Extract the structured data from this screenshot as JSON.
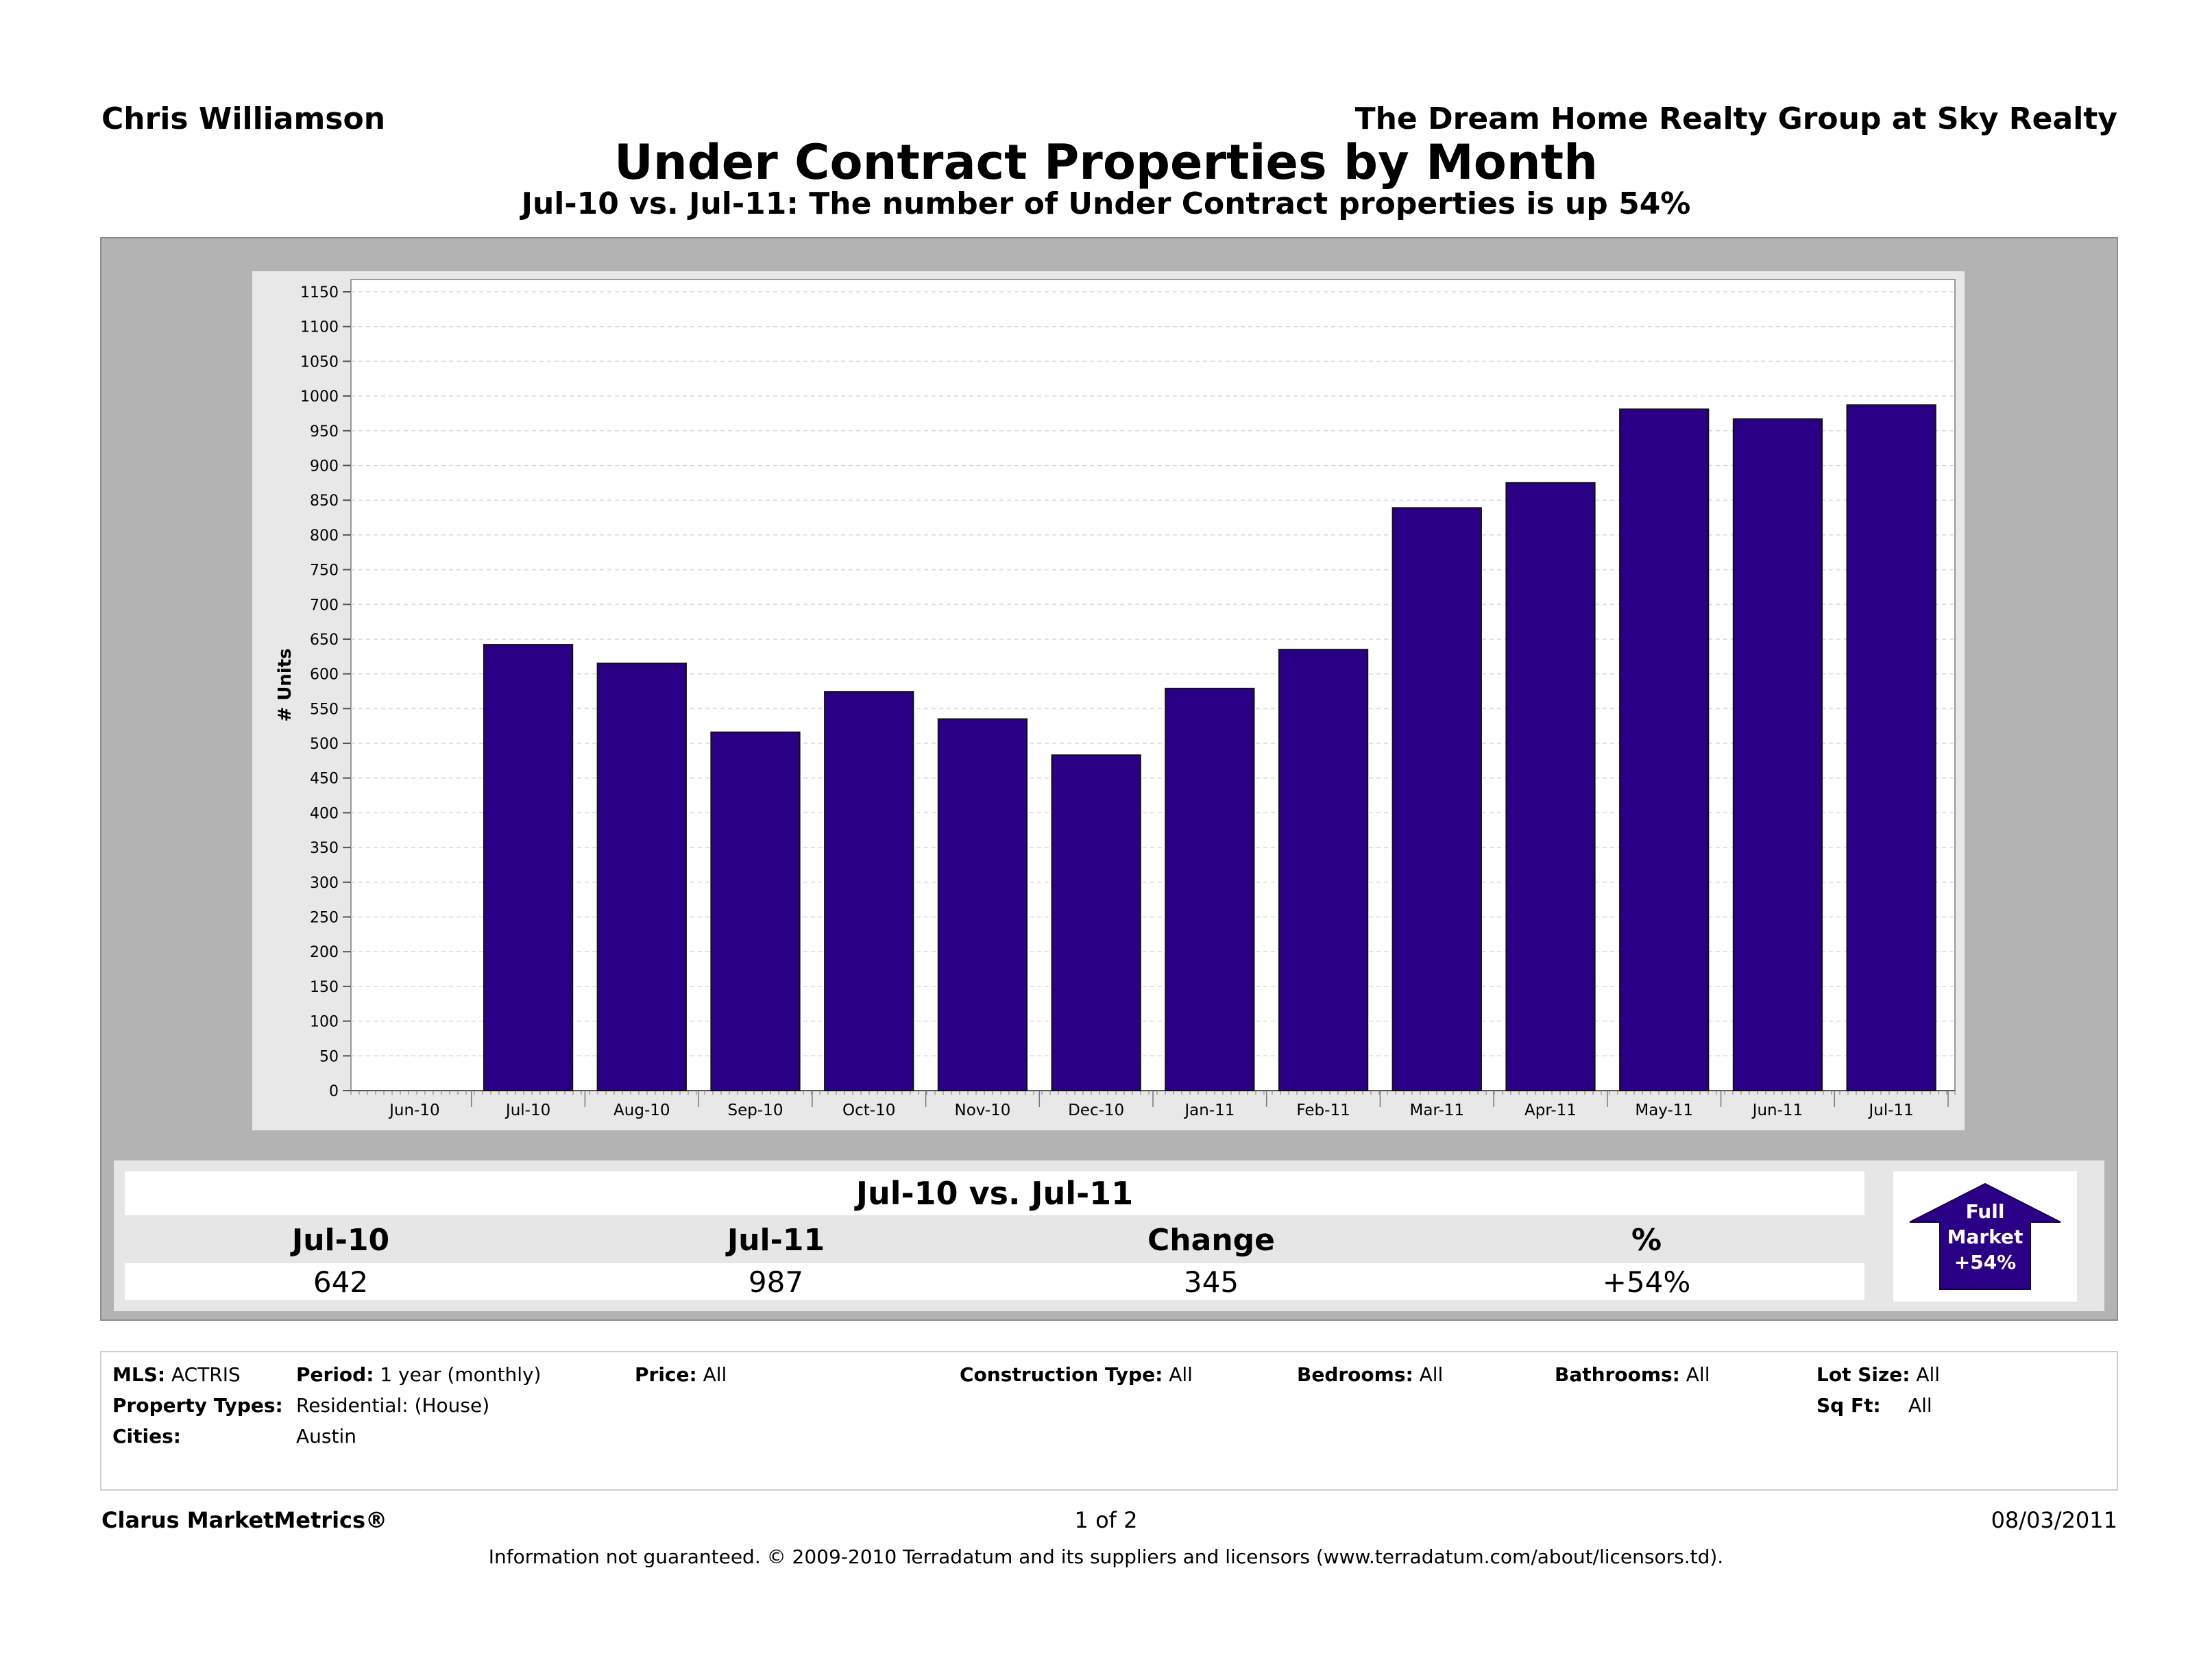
{
  "header": {
    "agent": "Chris Williamson",
    "company": "The Dream Home Realty Group at Sky Realty",
    "title": "Under Contract Properties by Month",
    "subtitle": "Jul-10 vs. Jul-11: The number of Under Contract properties is up 54%"
  },
  "chart_data": {
    "type": "bar",
    "ylabel": "# Units",
    "xlabel": "",
    "ylim": [
      0,
      1150
    ],
    "ytick_step": 50,
    "grid": true,
    "categories": [
      "Jun-10",
      "Jul-10",
      "Aug-10",
      "Sep-10",
      "Oct-10",
      "Nov-10",
      "Dec-10",
      "Jan-11",
      "Feb-11",
      "Mar-11",
      "Apr-11",
      "May-11",
      "Jun-11",
      "Jul-11"
    ],
    "values": [
      null,
      642,
      615,
      516,
      574,
      535,
      483,
      579,
      635,
      839,
      875,
      981,
      967,
      987
    ],
    "bar_color": "#2a0087"
  },
  "summary": {
    "title": "Jul-10 vs. Jul-11",
    "headers": [
      "Jul-10",
      "Jul-11",
      "Change",
      "%"
    ],
    "values": [
      "642",
      "987",
      "345",
      "+54%"
    ],
    "badge": [
      "Full",
      "Market",
      "+54%"
    ],
    "badge_color": "#2a0087"
  },
  "criteria": {
    "mls_label": "MLS:",
    "mls": "ACTRIS",
    "period_label": "Period:",
    "period": "1 year (monthly)",
    "price_label": "Price:",
    "price": "All",
    "construction_label": "Construction Type:",
    "construction": "All",
    "bedrooms_label": "Bedrooms:",
    "bedrooms": "All",
    "bathrooms_label": "Bathrooms:",
    "bathrooms": "All",
    "lotsize_label": "Lot Size:",
    "lotsize": "All",
    "property_types_label": "Property Types:",
    "property_types": "Residential: (House)",
    "sqft_label": "Sq Ft:",
    "sqft": "All",
    "cities_label": "Cities:",
    "cities": "Austin"
  },
  "footer": {
    "brand": "Clarus MarketMetrics®",
    "page": "1 of 2",
    "date": "08/03/2011",
    "disclaimer": "Information not guaranteed.  © 2009-2010 Terradatum and its suppliers and licensors (www.terradatum.com/about/licensors.td)."
  }
}
